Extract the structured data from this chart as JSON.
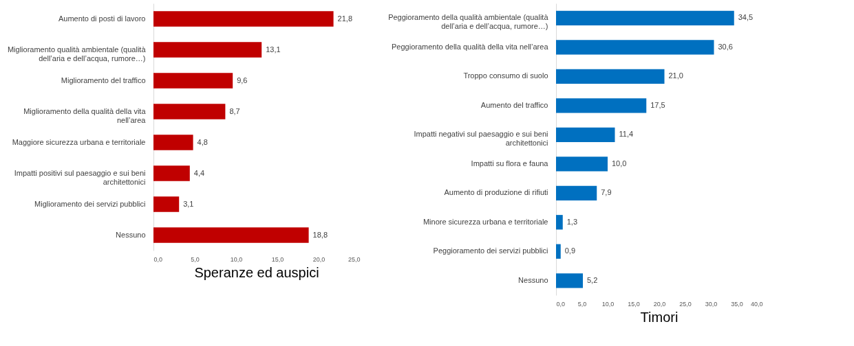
{
  "chart_data": [
    {
      "type": "bar",
      "orientation": "horizontal",
      "title": "Speranze ed auspici",
      "categories": [
        "Aumento di posti di lavoro",
        "Miglioramento qualità ambientale (qualità dell’aria e dell’acqua, rumore…)",
        "Miglioramento del traffico",
        "Miglioramento della qualità della vita nell’area",
        "Maggiore sicurezza urbana e territoriale",
        "Impatti positivi sul paesaggio e sui beni architettonici",
        "Miglioramento dei servizi pubblici",
        "Nessuno"
      ],
      "values": [
        21.8,
        13.1,
        9.6,
        8.7,
        4.8,
        4.4,
        3.1,
        18.8
      ],
      "value_labels": [
        "21,8",
        "13,1",
        "9,6",
        "8,7",
        "4,8",
        "4,4",
        "3,1",
        "18,8"
      ],
      "color": "#c00000",
      "xlim": [
        0,
        25
      ],
      "xticks": [
        {
          "value": 0,
          "label": "0,0"
        },
        {
          "value": 5,
          "label": "5,0"
        },
        {
          "value": 10,
          "label": "10,0"
        },
        {
          "value": 15,
          "label": "15,0"
        },
        {
          "value": 20,
          "label": "20,0"
        },
        {
          "value": 25,
          "label": "25,0"
        }
      ],
      "grid": false
    },
    {
      "type": "bar",
      "orientation": "horizontal",
      "title": "Timori",
      "categories": [
        "Peggioramento della qualità ambientale (qualità dell’aria e dell’acqua, rumore…)",
        "Peggioramento della qualità della vita nell’area",
        "Troppo consumo di suolo",
        "Aumento del traffico",
        "Impatti negativi sul paesaggio e sui beni architettonici",
        "Impatti su flora e fauna",
        "Aumento di produzione di rifiuti",
        "Minore sicurezza urbana e territoriale",
        "Peggioramento dei servizi pubblici",
        "Nessuno"
      ],
      "values": [
        34.5,
        30.6,
        21.0,
        17.5,
        11.4,
        10.0,
        7.9,
        1.3,
        0.9,
        5.2
      ],
      "value_labels": [
        "34,5",
        "30,6",
        "21,0",
        "17,5",
        "11,4",
        "10,0",
        "7,9",
        "1,3",
        "0,9",
        "5,2"
      ],
      "color": "#0070c0",
      "xlim": [
        0,
        40
      ],
      "xticks": [
        {
          "value": 0,
          "label": "0,0"
        },
        {
          "value": 5,
          "label": "5,0"
        },
        {
          "value": 10,
          "label": "10,0"
        },
        {
          "value": 15,
          "label": "15,0"
        },
        {
          "value": 20,
          "label": "20,0"
        },
        {
          "value": 25,
          "label": "25,0"
        },
        {
          "value": 30,
          "label": "30,0"
        },
        {
          "value": 35,
          "label": "35,0"
        },
        {
          "value": 40,
          "label": "40,0"
        }
      ],
      "grid": false
    }
  ]
}
